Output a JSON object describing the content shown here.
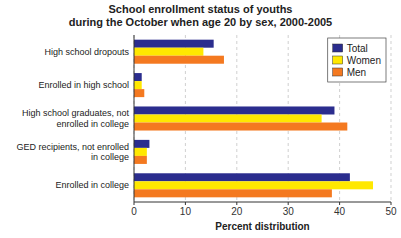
{
  "chart_data": {
    "type": "bar",
    "orientation": "horizontal",
    "title": "School enrollment status of youths\nduring the October when age 20 by sex, 2000-2005",
    "categories": [
      "High school dropouts",
      "Enrolled in high school",
      "High school graduates, not enrolled in college",
      "GED recipients, not enrolled in college",
      "Enrolled in college"
    ],
    "series": [
      {
        "name": "Total",
        "color": "#2B2D8E",
        "values": [
          15.5,
          1.5,
          39.0,
          3.0,
          42.0
        ]
      },
      {
        "name": "Women",
        "color": "#FFE800",
        "values": [
          13.5,
          1.5,
          36.5,
          2.5,
          46.5
        ]
      },
      {
        "name": "Men",
        "color": "#F47920",
        "values": [
          17.5,
          2.0,
          41.5,
          2.5,
          38.5
        ]
      }
    ],
    "xlabel": "Percent distribution",
    "xlim": [
      0,
      50
    ],
    "xticks": [
      0,
      10,
      20,
      30,
      40,
      50
    ],
    "grid": true,
    "legend": "upper right"
  }
}
